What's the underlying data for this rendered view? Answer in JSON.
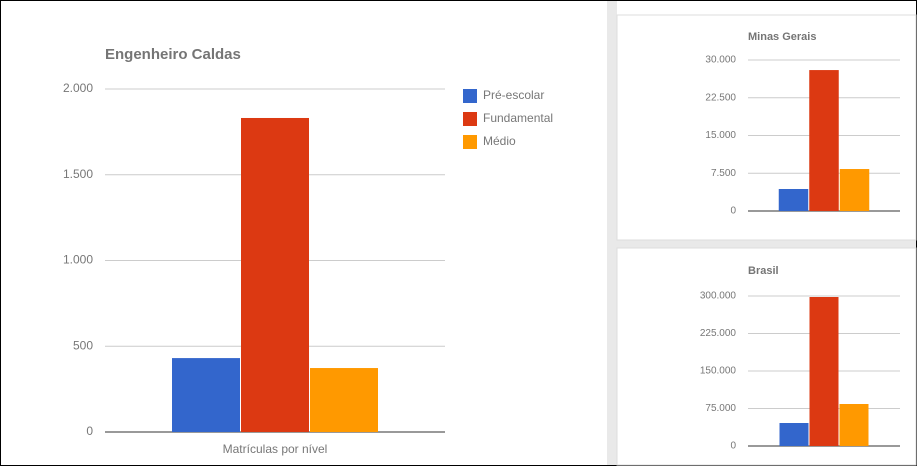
{
  "chart_data": [
    {
      "type": "bar",
      "title": "Engenheiro Caldas",
      "categories": [
        "Matrículas por nível"
      ],
      "series": [
        {
          "name": "Pré-escolar",
          "color": "#3366cc",
          "values": [
            431
          ]
        },
        {
          "name": "Fundamental",
          "color": "#dc3912",
          "values": [
            1831
          ]
        },
        {
          "name": "Médio",
          "color": "#ff9900",
          "values": [
            373
          ]
        }
      ],
      "ylim": [
        0,
        2000
      ],
      "yticks": [
        0,
        500,
        {
          "value": 1000,
          "label": "1.000"
        },
        {
          "value": 1500,
          "label": "1.500"
        },
        {
          "value": 2000,
          "label": "2.000"
        }
      ],
      "grid": true,
      "legend": "right"
    },
    {
      "type": "bar",
      "title": "Minas Gerais",
      "categories": [
        null
      ],
      "series": [
        {
          "color": "#3366cc",
          "values": [
            4370
          ]
        },
        {
          "color": "#dc3912",
          "values": [
            28000
          ]
        },
        {
          "color": "#ff9900",
          "values": [
            8340
          ]
        }
      ],
      "ylim": [
        0,
        30000
      ],
      "yticks": [
        0,
        {
          "value": 7500,
          "label": "7.500"
        },
        {
          "value": 15000,
          "label": "15.000"
        },
        {
          "value": 22500,
          "label": "22.500"
        },
        {
          "value": 30000,
          "label": "30.000"
        }
      ],
      "grid": true
    },
    {
      "type": "bar",
      "title": "Brasil",
      "categories": [
        null
      ],
      "series": [
        {
          "color": "#3366cc",
          "values": [
            46000
          ]
        },
        {
          "color": "#dc3912",
          "values": [
            298000
          ]
        },
        {
          "color": "#ff9900",
          "values": [
            84000
          ]
        }
      ],
      "ylim": [
        0,
        300000
      ],
      "yticks": [
        0,
        {
          "value": 75000,
          "label": "75.000"
        },
        {
          "value": 150000,
          "label": "150.000"
        },
        {
          "value": 225000,
          "label": "225.000"
        },
        {
          "value": 300000,
          "label": "300.000"
        }
      ],
      "grid": true
    }
  ]
}
